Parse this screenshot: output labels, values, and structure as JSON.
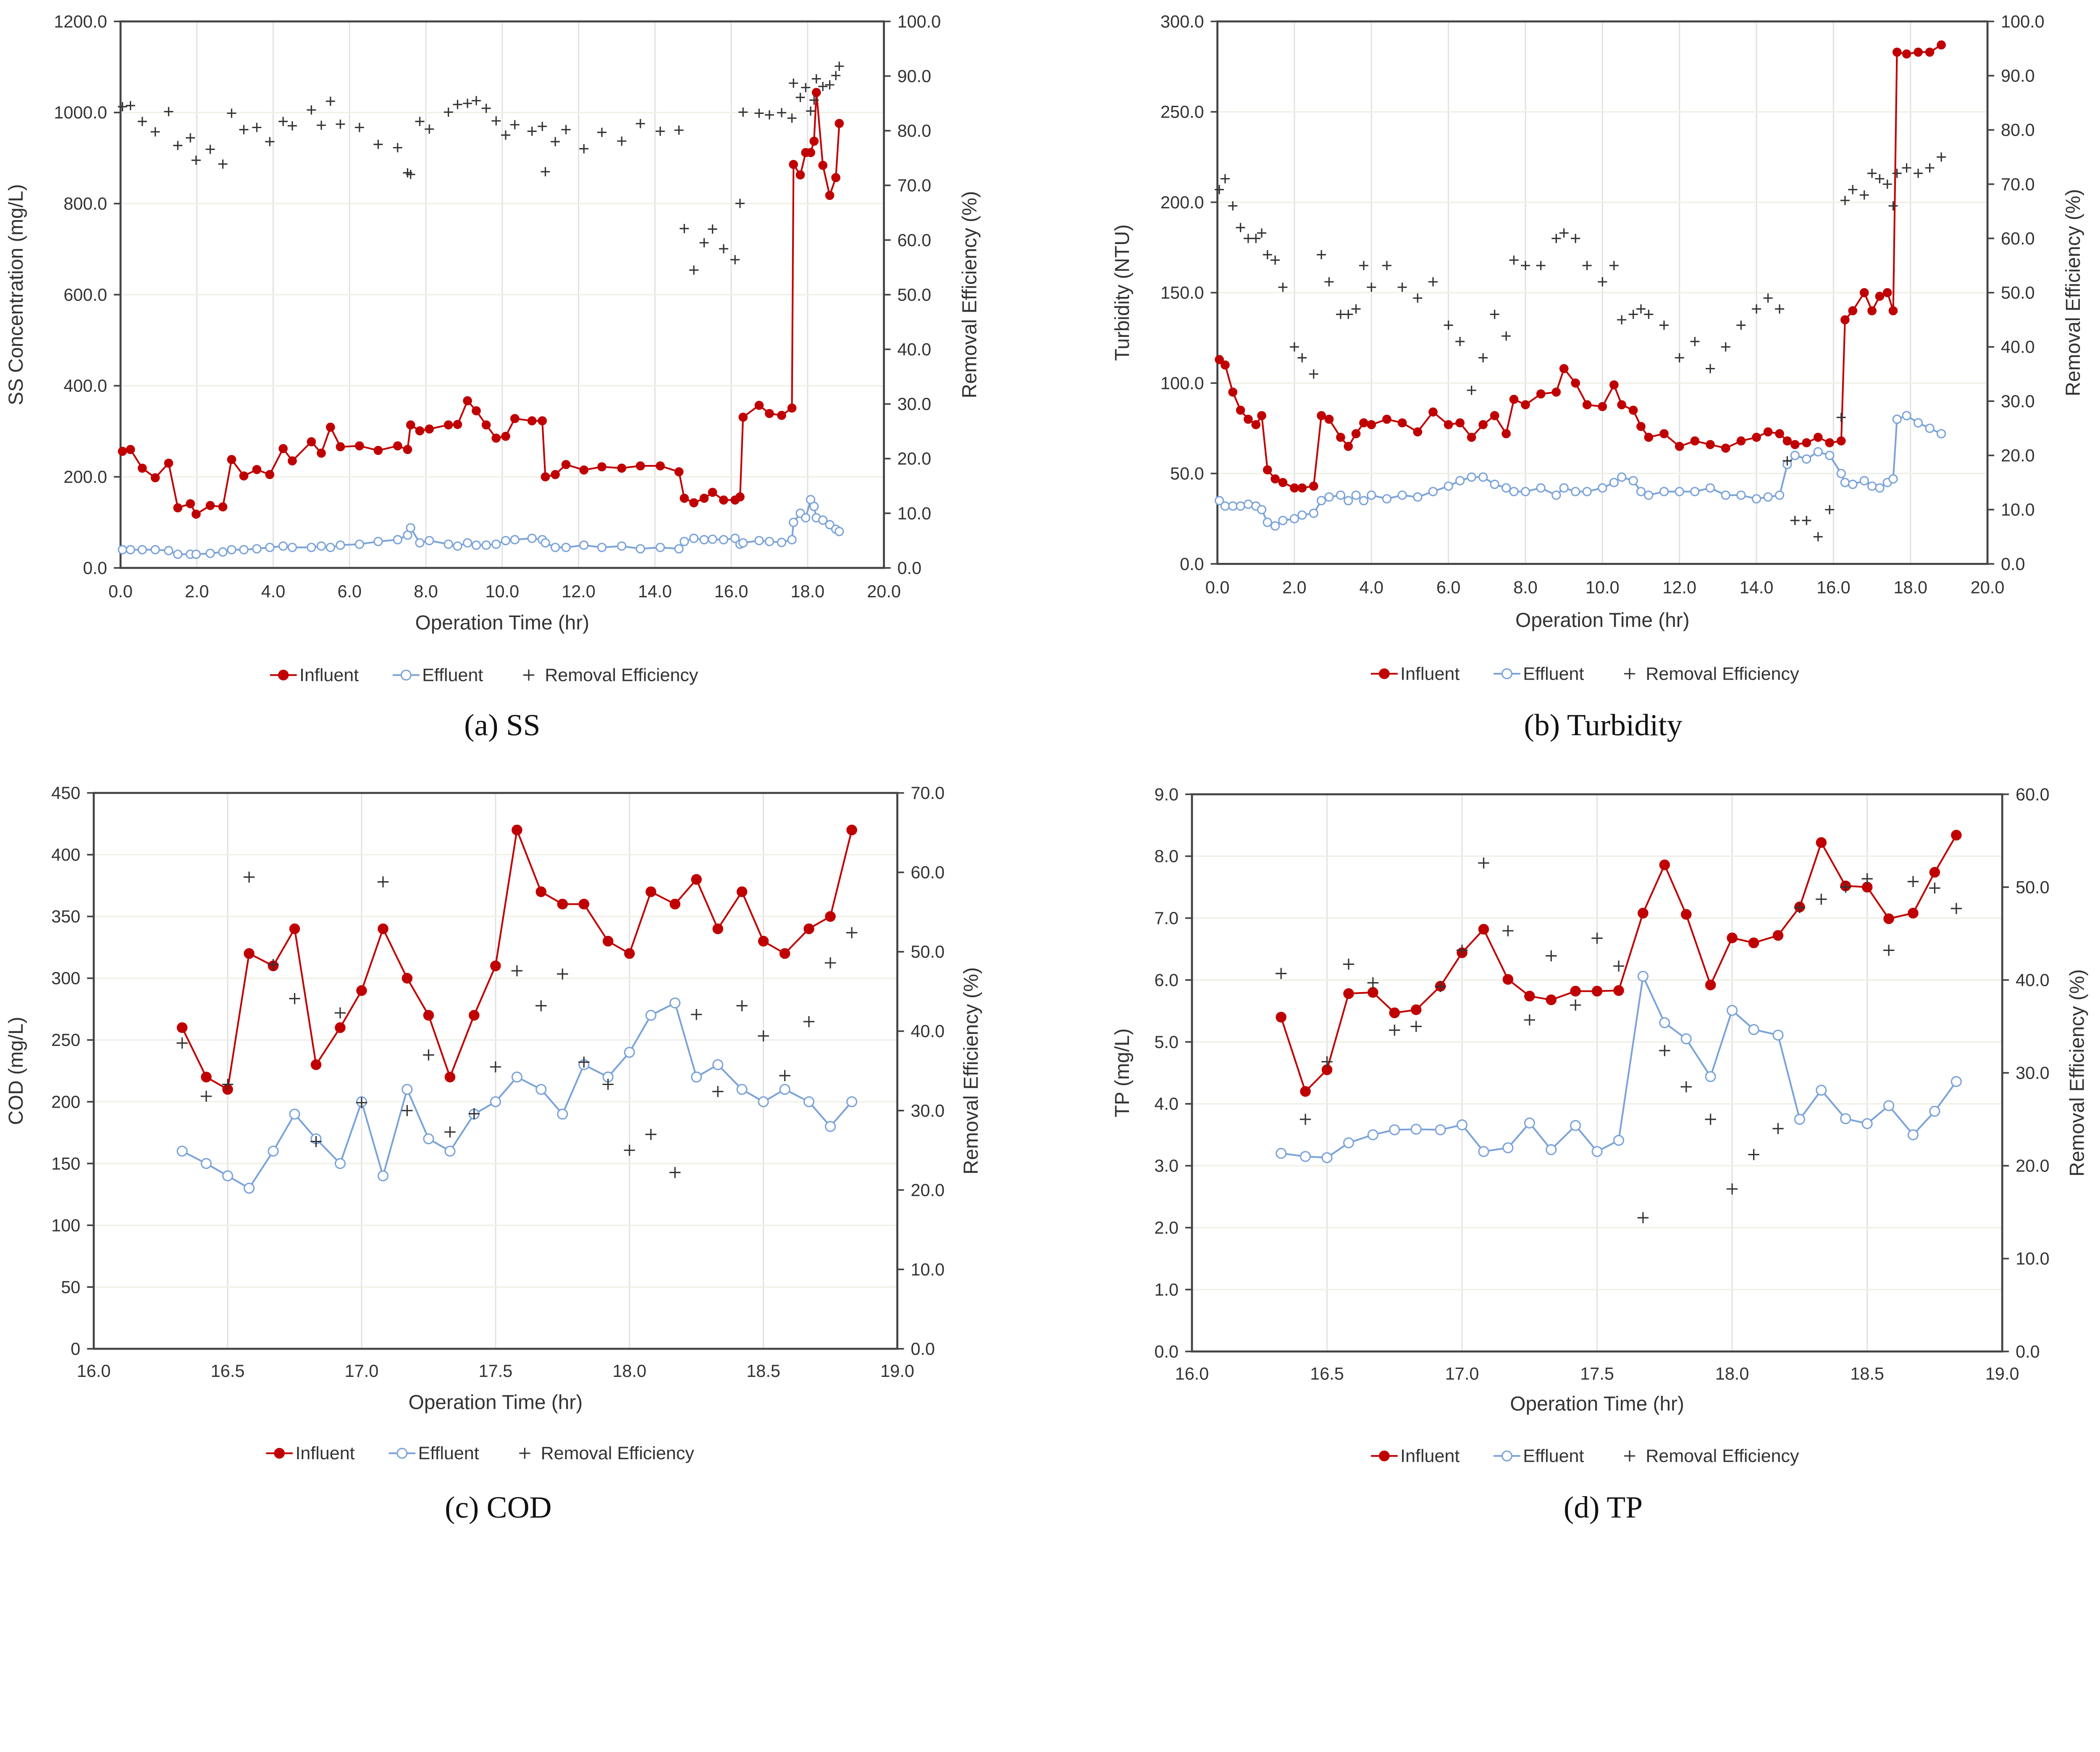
{
  "chart_data": [
    {
      "type": "line",
      "caption": "(a)  SS",
      "xlabel": "Operation Time (hr)",
      "ylabel": "SS Concentration (mg/L)",
      "y2label": "Removal Efficiency (%)",
      "xlim": [
        0,
        20
      ],
      "ylim": [
        0,
        1200
      ],
      "y2lim": [
        0,
        100
      ],
      "x_ticks": [
        "0.0",
        "2.0",
        "4.0",
        "6.0",
        "8.0",
        "10.0",
        "12.0",
        "14.0",
        "16.0",
        "18.0",
        "20.0"
      ],
      "y_ticks": [
        "0.0",
        "200.0",
        "400.0",
        "600.0",
        "800.0",
        "1000.0",
        "1200.0"
      ],
      "y2_ticks": [
        "0.0",
        "10.0",
        "20.0",
        "30.0",
        "40.0",
        "50.0",
        "60.0",
        "70.0",
        "80.0",
        "90.0",
        "100.0"
      ],
      "grid": true,
      "legend": "bottom",
      "x": [
        0.05,
        0.26,
        0.57,
        0.91,
        1.26,
        1.5,
        1.83,
        1.98,
        2.35,
        2.68,
        2.91,
        3.23,
        3.57,
        3.91,
        4.26,
        4.5,
        5.0,
        5.26,
        5.5,
        5.76,
        6.26,
        6.75,
        7.26,
        7.52,
        7.6,
        7.84,
        8.09,
        8.59,
        8.83,
        9.09,
        9.32,
        9.58,
        9.84,
        10.09,
        10.33,
        10.78,
        11.05,
        11.13,
        11.39,
        11.67,
        12.14,
        12.61,
        13.13,
        13.62,
        14.14,
        14.63,
        14.77,
        15.02,
        15.29,
        15.51,
        15.8,
        16.1,
        16.23,
        16.31,
        16.73,
        17.0,
        17.32,
        17.59,
        17.63,
        17.81,
        17.95,
        18.08,
        18.17,
        18.23,
        18.4,
        18.58,
        18.74,
        18.83
      ],
      "series": [
        {
          "name": "Influent",
          "axis": "left",
          "color": "#c00000",
          "marker": "filled-circle",
          "values": [
            256,
            260,
            219,
            198,
            230,
            132,
            141,
            118,
            137,
            134,
            238,
            202,
            216,
            205,
            262,
            235,
            277,
            252,
            309,
            266,
            268,
            258,
            268,
            260,
            314,
            301,
            305,
            314,
            315,
            367,
            345,
            314,
            285,
            289,
            328,
            323,
            323,
            200,
            205,
            227,
            215,
            222,
            219,
            224,
            224,
            211,
            153,
            143,
            153,
            166,
            149,
            149,
            156,
            331,
            357,
            339,
            335,
            351,
            886,
            863,
            912,
            912,
            937,
            1044,
            884,
            818,
            857,
            976
          ]
        },
        {
          "name": "Effluent",
          "axis": "left",
          "color": "#7ba3d9",
          "marker": "hollow-circle",
          "values": [
            40,
            40,
            40,
            40,
            38,
            30,
            30,
            30,
            32,
            35,
            40,
            40,
            42,
            45,
            48,
            45,
            45,
            48,
            45,
            50,
            52,
            58,
            62,
            72,
            88,
            55,
            60,
            52,
            48,
            55,
            50,
            50,
            52,
            60,
            62,
            65,
            62,
            55,
            45,
            45,
            50,
            45,
            48,
            42,
            45,
            42,
            58,
            65,
            62,
            63,
            62,
            65,
            52,
            55,
            60,
            58,
            56,
            62,
            100,
            120,
            110,
            150,
            135,
            110,
            105,
            95,
            85,
            80
          ]
        },
        {
          "name": "Removal Efficiency",
          "axis": "right",
          "color": "#333333",
          "marker": "plus",
          "values": [
            84.4,
            84.6,
            81.7,
            79.8,
            83.5,
            77.3,
            78.7,
            74.6,
            76.6,
            73.9,
            83.2,
            80.2,
            80.6,
            78.0,
            81.7,
            80.9,
            83.8,
            81.0,
            85.4,
            81.2,
            80.6,
            77.5,
            76.9,
            72.3,
            72.0,
            81.7,
            80.3,
            83.4,
            84.8,
            85.0,
            85.5,
            84.1,
            81.8,
            79.2,
            81.1,
            79.9,
            80.8,
            72.5,
            78.0,
            80.2,
            76.7,
            79.7,
            78.1,
            81.3,
            79.9,
            80.1,
            62.1,
            54.5,
            59.5,
            62.0,
            58.4,
            56.4,
            66.7,
            83.4,
            83.2,
            82.9,
            83.3,
            82.3,
            88.7,
            86.1,
            87.9,
            83.6,
            85.6,
            89.5,
            88.1,
            88.4,
            90.1,
            91.8
          ]
        }
      ]
    },
    {
      "type": "line",
      "caption": "(b)  Turbidity",
      "xlabel": "Operation Time (hr)",
      "ylabel": "Turbidity (NTU)",
      "y2label": "Removal Efficiency (%)",
      "xlim": [
        0,
        20
      ],
      "ylim": [
        0,
        300
      ],
      "y2lim": [
        0,
        100
      ],
      "x_ticks": [
        "0.0",
        "2.0",
        "4.0",
        "6.0",
        "8.0",
        "10.0",
        "12.0",
        "14.0",
        "16.0",
        "18.0",
        "20.0"
      ],
      "y_ticks": [
        "0.0",
        "50.0",
        "100.0",
        "150.0",
        "200.0",
        "250.0",
        "300.0"
      ],
      "y2_ticks": [
        "0.0",
        "10.0",
        "20.0",
        "30.0",
        "40.0",
        "50.0",
        "60.0",
        "70.0",
        "80.0",
        "90.0",
        "100.0"
      ],
      "grid": true,
      "legend": "bottom",
      "x": [
        0.05,
        0.2,
        0.4,
        0.6,
        0.8,
        1.0,
        1.15,
        1.3,
        1.5,
        1.7,
        2.0,
        2.2,
        2.5,
        2.7,
        2.9,
        3.2,
        3.4,
        3.6,
        3.8,
        4.0,
        4.4,
        4.8,
        5.2,
        5.6,
        6.0,
        6.3,
        6.6,
        6.9,
        7.2,
        7.5,
        7.7,
        8.0,
        8.4,
        8.8,
        9.0,
        9.3,
        9.6,
        10.0,
        10.3,
        10.5,
        10.8,
        11.0,
        11.2,
        11.6,
        12.0,
        12.4,
        12.8,
        13.2,
        13.6,
        14.0,
        14.3,
        14.6,
        14.8,
        15.0,
        15.3,
        15.6,
        15.9,
        16.2,
        16.3,
        16.5,
        16.8,
        17.0,
        17.2,
        17.4,
        17.55,
        17.65,
        17.9,
        18.2,
        18.5,
        18.8
      ],
      "series": [
        {
          "name": "Influent",
          "axis": "left",
          "color": "#c00000",
          "marker": "filled-circle",
          "values": [
            113,
            110,
            95,
            85,
            80,
            77,
            82,
            52,
            47,
            45,
            42,
            42,
            43,
            82,
            80,
            70,
            65,
            72,
            78,
            77,
            80,
            78,
            73,
            84,
            77,
            78,
            70,
            77,
            82,
            72,
            91,
            88,
            94,
            95,
            108,
            100,
            88,
            87,
            99,
            88,
            85,
            76,
            70,
            72,
            65,
            68,
            66,
            64,
            68,
            70,
            73,
            72,
            68,
            66,
            67,
            70,
            67,
            68,
            135,
            140,
            150,
            140,
            148,
            150,
            140,
            283,
            282,
            283,
            283,
            287
          ]
        },
        {
          "name": "Effluent",
          "axis": "left",
          "color": "#7ba3d9",
          "marker": "hollow-circle",
          "values": [
            35,
            32,
            32,
            32,
            33,
            32,
            30,
            23,
            21,
            24,
            25,
            27,
            28,
            35,
            37,
            38,
            35,
            38,
            35,
            38,
            36,
            38,
            37,
            40,
            43,
            46,
            48,
            48,
            44,
            42,
            40,
            40,
            42,
            38,
            42,
            40,
            40,
            42,
            45,
            48,
            46,
            40,
            38,
            40,
            40,
            40,
            42,
            38,
            38,
            36,
            37,
            38,
            55,
            60,
            58,
            62,
            60,
            50,
            45,
            44,
            46,
            43,
            42,
            45,
            47,
            80,
            82,
            78,
            75,
            72
          ]
        },
        {
          "name": "Removal Efficiency",
          "axis": "right",
          "color": "#333333",
          "marker": "plus",
          "values": [
            69,
            71,
            66,
            62,
            60,
            60,
            61,
            57,
            56,
            51,
            40,
            38,
            35,
            57,
            52,
            46,
            46,
            47,
            55,
            51,
            55,
            51,
            49,
            52,
            44,
            41,
            32,
            38,
            46,
            42,
            56,
            55,
            55,
            60,
            61,
            60,
            55,
            52,
            55,
            45,
            46,
            47,
            46,
            44,
            38,
            41,
            36,
            40,
            44,
            47,
            49,
            47,
            19,
            8,
            8,
            5,
            10,
            27,
            67,
            69,
            68,
            72,
            71,
            70,
            66,
            72,
            73,
            72,
            73,
            75
          ]
        }
      ]
    },
    {
      "type": "line",
      "caption": "(c)  COD",
      "xlabel": "Operation Time (hr)",
      "ylabel": "COD (mg/L)",
      "y2label": "Removal Efficiency (%)",
      "xlim": [
        16,
        19
      ],
      "ylim": [
        0,
        450
      ],
      "y2lim": [
        0,
        70
      ],
      "x_ticks": [
        "16.0",
        "16.5",
        "17.0",
        "17.5",
        "18.0",
        "18.5",
        "19.0"
      ],
      "y_ticks": [
        "0",
        "50",
        "100",
        "150",
        "200",
        "250",
        "300",
        "350",
        "400",
        "450"
      ],
      "y2_ticks": [
        "0.0",
        "10.0",
        "20.0",
        "30.0",
        "40.0",
        "50.0",
        "60.0",
        "70.0"
      ],
      "grid": true,
      "legend": "bottom",
      "x": [
        16.33,
        16.42,
        16.5,
        16.58,
        16.67,
        16.75,
        16.83,
        16.92,
        17.0,
        17.08,
        17.17,
        17.25,
        17.33,
        17.42,
        17.5,
        17.58,
        17.67,
        17.75,
        17.83,
        17.92,
        18.0,
        18.08,
        18.17,
        18.25,
        18.33,
        18.42,
        18.5,
        18.58,
        18.67,
        18.75,
        18.83
      ],
      "series": [
        {
          "name": "Influent",
          "axis": "left",
          "color": "#c00000",
          "marker": "filled-circle",
          "values": [
            260,
            220,
            210,
            320,
            310,
            340,
            230,
            260,
            290,
            340,
            300,
            270,
            220,
            270,
            310,
            420,
            370,
            360,
            360,
            330,
            320,
            370,
            360,
            380,
            340,
            370,
            330,
            320,
            340,
            350,
            420
          ]
        },
        {
          "name": "Effluent",
          "axis": "left",
          "color": "#7ba3d9",
          "marker": "hollow-circle",
          "values": [
            160,
            150,
            140,
            130,
            160,
            190,
            170,
            150,
            200,
            140,
            210,
            170,
            160,
            190,
            200,
            220,
            210,
            190,
            230,
            220,
            240,
            270,
            280,
            220,
            230,
            210,
            200,
            210,
            200,
            180,
            200
          ]
        },
        {
          "name": "Removal Efficiency",
          "axis": "right",
          "color": "#333333",
          "marker": "plus",
          "values": [
            38.5,
            31.8,
            33.3,
            59.4,
            48.4,
            44.1,
            26.1,
            42.3,
            31.0,
            58.8,
            30.0,
            37.0,
            27.3,
            29.6,
            35.5,
            47.6,
            43.2,
            47.2,
            36.1,
            33.3,
            25.0,
            27.0,
            22.2,
            42.1,
            32.4,
            43.2,
            39.4,
            34.4,
            41.2,
            48.6,
            52.4
          ]
        }
      ]
    },
    {
      "type": "line",
      "caption": "(d)  TP",
      "xlabel": "Operation Time (hr)",
      "ylabel": "TP (mg/L)",
      "y2label": "Removal Efficiency (%)",
      "xlim": [
        16,
        19
      ],
      "ylim": [
        0,
        9
      ],
      "y2lim": [
        0,
        60
      ],
      "x_ticks": [
        "16.0",
        "16.5",
        "17.0",
        "17.5",
        "18.0",
        "18.5",
        "19.0"
      ],
      "y_ticks": [
        "0.0",
        "1.0",
        "2.0",
        "3.0",
        "4.0",
        "5.0",
        "6.0",
        "7.0",
        "8.0",
        "9.0"
      ],
      "y2_ticks": [
        "0.0",
        "10.0",
        "20.0",
        "30.0",
        "40.0",
        "50.0",
        "60.0"
      ],
      "grid": true,
      "legend": "bottom",
      "x": [
        16.33,
        16.42,
        16.5,
        16.58,
        16.67,
        16.75,
        16.83,
        16.92,
        17.0,
        17.08,
        17.17,
        17.25,
        17.33,
        17.42,
        17.5,
        17.58,
        17.67,
        17.75,
        17.83,
        17.92,
        18.0,
        18.08,
        18.17,
        18.25,
        18.33,
        18.42,
        18.5,
        18.58,
        18.67,
        18.75,
        18.83
      ],
      "series": [
        {
          "name": "Influent",
          "axis": "left",
          "color": "#c00000",
          "marker": "filled-circle",
          "values": [
            5.4,
            4.2,
            4.55,
            5.78,
            5.8,
            5.47,
            5.52,
            5.9,
            6.44,
            6.82,
            6.01,
            5.74,
            5.68,
            5.82,
            5.82,
            5.83,
            7.08,
            7.86,
            7.06,
            5.92,
            6.68,
            6.6,
            6.72,
            7.18,
            8.22,
            7.52,
            7.5,
            6.99,
            7.08,
            7.74,
            8.34
          ]
        },
        {
          "name": "Effluent",
          "axis": "left",
          "color": "#7ba3d9",
          "marker": "hollow-circle",
          "values": [
            3.2,
            3.15,
            3.13,
            3.37,
            3.5,
            3.58,
            3.59,
            3.58,
            3.66,
            3.23,
            3.29,
            3.69,
            3.26,
            3.65,
            3.23,
            3.41,
            6.06,
            5.31,
            5.05,
            4.44,
            5.51,
            5.2,
            5.11,
            3.75,
            4.22,
            3.76,
            3.68,
            3.97,
            3.5,
            3.88,
            4.36
          ]
        },
        {
          "name": "Removal Efficiency",
          "axis": "right",
          "color": "#333333",
          "marker": "plus",
          "values": [
            40.7,
            25.0,
            31.2,
            41.7,
            39.7,
            34.6,
            35.0,
            39.3,
            43.2,
            52.6,
            45.3,
            35.7,
            42.6,
            37.3,
            44.5,
            41.5,
            14.4,
            32.4,
            28.5,
            25.0,
            17.5,
            21.2,
            24.0,
            47.8,
            48.7,
            50.0,
            50.9,
            43.2,
            50.6,
            49.9,
            47.7
          ]
        }
      ]
    }
  ]
}
